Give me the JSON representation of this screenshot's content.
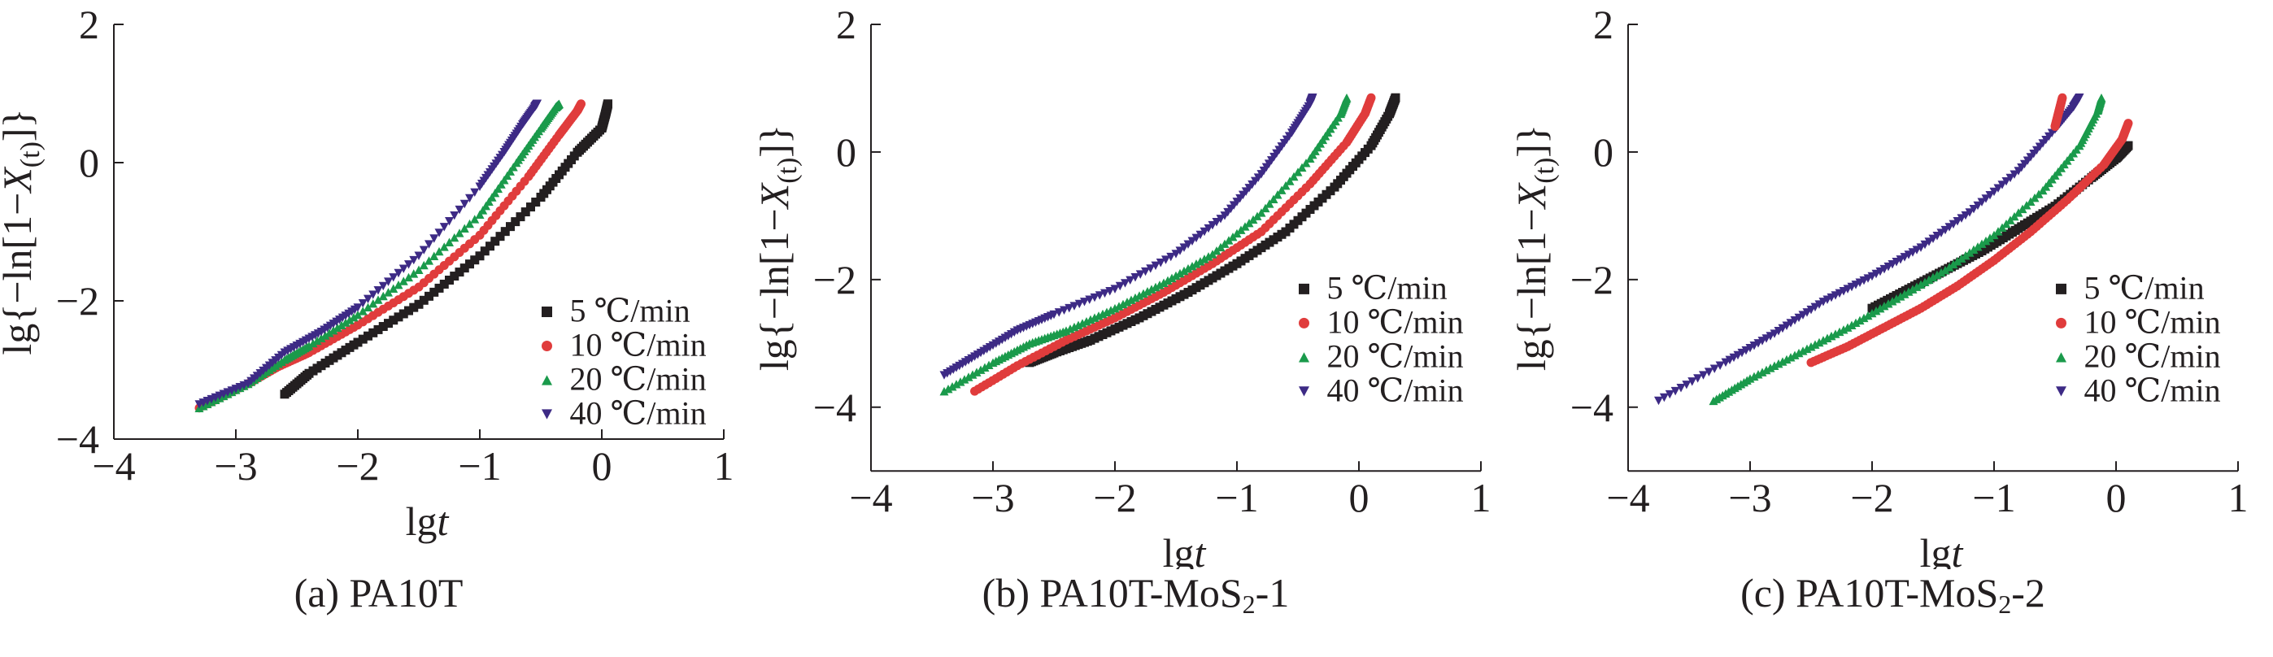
{
  "colors": {
    "5": "#231f20",
    "10": "#e03c3c",
    "20": "#1a9a4b",
    "40": "#3d2a85"
  },
  "chart_data": [
    {
      "type": "scatter",
      "caption": "(a) PA10T",
      "caption_main": "(a) PA10T",
      "caption_sub": "",
      "caption_tail": "",
      "xlabel": "lgt",
      "ylabel": "lg{−ln[1−X(t)]}",
      "xlim": [
        -4,
        1
      ],
      "ylim": [
        -4,
        2
      ],
      "xticks": [
        -4,
        -3,
        -2,
        -1,
        0,
        1
      ],
      "yticks": [
        -4,
        -2,
        0,
        2
      ],
      "xtick_labels": [
        "−4",
        "−3",
        "−2",
        "−1",
        "0",
        "1"
      ],
      "ytick_labels": [
        "−4",
        "−2",
        "0",
        "2"
      ],
      "legend_position": "lower-right",
      "series": [
        {
          "name": "5 ℃/min",
          "legend_label": "5  ℃/min",
          "marker": "square",
          "color_key": "5",
          "x": [
            -2.6,
            -2.4,
            -2.0,
            -1.5,
            -1.0,
            -0.5,
            -0.2,
            0.0,
            0.03,
            0.05
          ],
          "y": [
            -3.35,
            -3.05,
            -2.6,
            -2.05,
            -1.35,
            -0.5,
            0.15,
            0.5,
            0.7,
            0.85
          ]
        },
        {
          "name": "10 ℃/min",
          "legend_label": "10 ℃/min",
          "marker": "circle",
          "color_key": "10",
          "x": [
            -3.3,
            -2.9,
            -2.65,
            -2.4,
            -2.0,
            -1.5,
            -1.0,
            -0.6,
            -0.35,
            -0.2,
            -0.17
          ],
          "y": [
            -3.55,
            -3.2,
            -2.95,
            -2.75,
            -2.35,
            -1.8,
            -1.05,
            -0.2,
            0.4,
            0.75,
            0.85
          ]
        },
        {
          "name": "20 ℃/min",
          "legend_label": "20 ℃/min",
          "marker": "triangle-up",
          "color_key": "20",
          "x": [
            -3.3,
            -2.9,
            -2.6,
            -2.4,
            -2.0,
            -1.5,
            -1.0,
            -0.7,
            -0.5,
            -0.38,
            -0.35
          ],
          "y": [
            -3.55,
            -3.2,
            -2.85,
            -2.65,
            -2.2,
            -1.55,
            -0.75,
            0.0,
            0.5,
            0.8,
            0.85
          ]
        },
        {
          "name": "40 ℃/min",
          "legend_label": "40 ℃/min",
          "marker": "triangle-down",
          "color_key": "40",
          "x": [
            -3.3,
            -2.9,
            -2.6,
            -2.3,
            -2.0,
            -1.5,
            -1.0,
            -0.8,
            -0.65,
            -0.55,
            -0.53
          ],
          "y": [
            -3.5,
            -3.2,
            -2.75,
            -2.45,
            -2.1,
            -1.35,
            -0.35,
            0.15,
            0.55,
            0.8,
            0.85
          ]
        }
      ]
    },
    {
      "type": "scatter",
      "caption": "(b) PA10T-MoS2-1",
      "caption_main": "(b) PA10T-MoS",
      "caption_sub": "2",
      "caption_tail": "-1",
      "xlabel": "lgt",
      "ylabel": "lg{−ln[1−X(t)]}",
      "xlim": [
        -4,
        1
      ],
      "ylim": [
        -5,
        2
      ],
      "xticks": [
        -4,
        -3,
        -2,
        -1,
        0,
        1
      ],
      "yticks": [
        -4,
        -2,
        0,
        2
      ],
      "xtick_labels": [
        "−4",
        "−3",
        "−2",
        "−1",
        "0",
        "1"
      ],
      "ytick_labels": [
        "−4",
        "−2",
        "0",
        "2"
      ],
      "legend_position": "lower-right",
      "series": [
        {
          "name": "5 ℃/min",
          "legend_label": "5  ℃/min",
          "marker": "square",
          "color_key": "5",
          "x": [
            -2.7,
            -2.5,
            -2.2,
            -1.8,
            -1.4,
            -1.0,
            -0.6,
            -0.2,
            0.1,
            0.25,
            0.3
          ],
          "y": [
            -3.3,
            -3.15,
            -2.95,
            -2.6,
            -2.2,
            -1.75,
            -1.25,
            -0.55,
            0.1,
            0.6,
            0.85
          ]
        },
        {
          "name": "10 ℃/min",
          "legend_label": "10 ℃/min",
          "marker": "circle",
          "color_key": "10",
          "x": [
            -3.15,
            -2.8,
            -2.4,
            -2.0,
            -1.6,
            -1.2,
            -0.8,
            -0.4,
            -0.1,
            0.05,
            0.1
          ],
          "y": [
            -3.75,
            -3.35,
            -2.95,
            -2.6,
            -2.2,
            -1.75,
            -1.25,
            -0.5,
            0.15,
            0.6,
            0.85
          ]
        },
        {
          "name": "20 ℃/min",
          "legend_label": "20 ℃/min",
          "marker": "triangle-up",
          "color_key": "20",
          "x": [
            -3.4,
            -3.0,
            -2.7,
            -2.4,
            -2.0,
            -1.6,
            -1.2,
            -0.8,
            -0.4,
            -0.15,
            -0.1
          ],
          "y": [
            -3.75,
            -3.3,
            -3.0,
            -2.8,
            -2.45,
            -2.05,
            -1.6,
            -0.95,
            -0.1,
            0.6,
            0.85
          ]
        },
        {
          "name": "40 ℃/min",
          "legend_label": "40 ℃/min",
          "marker": "triangle-down",
          "color_key": "40",
          "x": [
            -3.4,
            -3.1,
            -2.8,
            -2.5,
            -2.0,
            -1.5,
            -1.1,
            -0.8,
            -0.55,
            -0.4,
            -0.38
          ],
          "y": [
            -3.5,
            -3.15,
            -2.8,
            -2.55,
            -2.15,
            -1.6,
            -1.0,
            -0.35,
            0.3,
            0.75,
            0.85
          ]
        }
      ]
    },
    {
      "type": "scatter",
      "caption": "(c) PA10T-MoS2-2",
      "caption_main": "(c) PA10T-MoS",
      "caption_sub": "2",
      "caption_tail": "-2",
      "xlabel": "lgt",
      "ylabel": "lg{−ln[1−X(t)]}",
      "xlim": [
        -4,
        1
      ],
      "ylim": [
        -5,
        2
      ],
      "xticks": [
        -4,
        -3,
        -2,
        -1,
        0,
        1
      ],
      "yticks": [
        -4,
        -2,
        0,
        2
      ],
      "xtick_labels": [
        "−4",
        "−3",
        "−2",
        "−1",
        "0",
        "1"
      ],
      "ytick_labels": [
        "−4",
        "−2",
        "0",
        "2"
      ],
      "legend_position": "lower-right",
      "series": [
        {
          "name": "5 ℃/min",
          "legend_label": "5  ℃/min",
          "marker": "square",
          "color_key": "5",
          "x": [
            -2.0,
            -1.7,
            -1.4,
            -1.1,
            -0.8,
            -0.5,
            -0.2,
            0.0,
            0.1
          ],
          "y": [
            -2.45,
            -2.15,
            -1.85,
            -1.55,
            -1.2,
            -0.85,
            -0.4,
            -0.1,
            0.1
          ]
        },
        {
          "name": "10 ℃/min",
          "legend_label": "10 ℃/min",
          "marker": "circle",
          "color_key": "10",
          "x": [
            -2.5,
            -2.2,
            -1.9,
            -1.6,
            -1.3,
            -1.0,
            -0.7,
            -0.4,
            -0.1,
            0.05,
            0.1
          ],
          "y": [
            -3.3,
            -3.05,
            -2.75,
            -2.45,
            -2.1,
            -1.7,
            -1.25,
            -0.75,
            -0.2,
            0.2,
            0.45
          ]
        },
        {
          "name": "20 ℃/min",
          "legend_label": "20 ℃/min",
          "marker": "triangle-up",
          "color_key": "20",
          "x": [
            -3.3,
            -3.0,
            -2.6,
            -2.2,
            -1.8,
            -1.4,
            -1.0,
            -0.6,
            -0.3,
            -0.15,
            -0.12
          ],
          "y": [
            -3.9,
            -3.55,
            -3.15,
            -2.75,
            -2.3,
            -1.85,
            -1.3,
            -0.6,
            0.1,
            0.65,
            0.85
          ]
        },
        {
          "name": "40 ℃/min",
          "legend_label": "40 ℃/min",
          "marker": "triangle-down",
          "color_key": "40",
          "x": [
            -3.75,
            -3.2,
            -2.8,
            -2.4,
            -2.0,
            -1.6,
            -1.2,
            -0.8,
            -0.5,
            -0.35,
            -0.3
          ],
          "y": [
            -3.9,
            -3.3,
            -2.85,
            -2.35,
            -1.95,
            -1.5,
            -0.95,
            -0.3,
            0.35,
            0.7,
            0.85
          ]
        },
        {
          "name": "",
          "legend_label": "",
          "marker": "circle",
          "color_key": "10",
          "x": [
            -0.5,
            -0.48,
            -0.46,
            -0.44
          ],
          "y": [
            0.4,
            0.55,
            0.7,
            0.85
          ]
        }
      ]
    }
  ]
}
